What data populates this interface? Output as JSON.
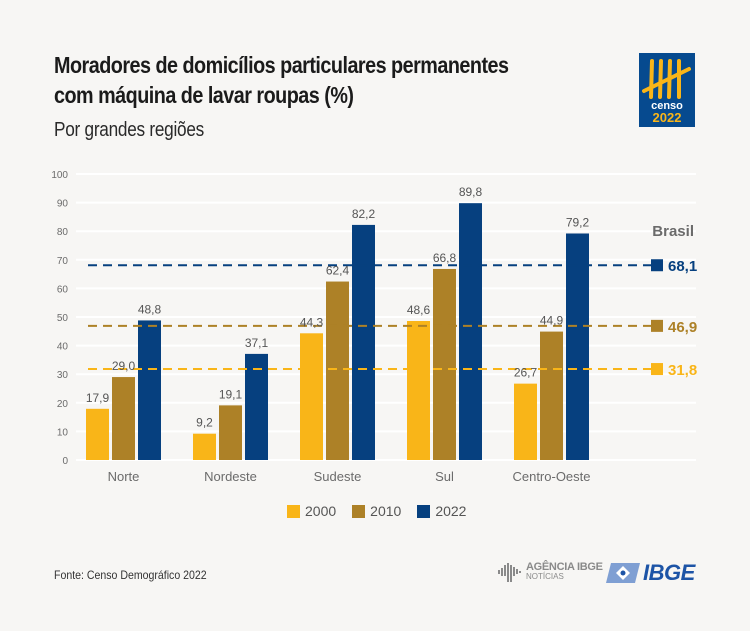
{
  "header": {
    "title_line1": "Moradores de domicílios particulares permanentes",
    "title_line2": "com máquina de lavar roupas (%)",
    "subtitle": "Por grandes regiões"
  },
  "logos": {
    "censo_word": "censo",
    "censo_year": "2022",
    "agencia_top": "AGÊNCIA IBGE",
    "agencia_bottom": "NOTÍCIAS",
    "ibge": "IBGE"
  },
  "footer": {
    "source": "Fonte: Censo Demográfico 2022"
  },
  "colors": {
    "2000": "#f9b518",
    "2010": "#ad8127",
    "2022": "#06407f",
    "grid": "#ffffff",
    "axis_text": "#6b6b6b",
    "label_text": "#555555"
  },
  "chart_data": {
    "type": "bar",
    "title": "Moradores de domicílios particulares permanentes com máquina de lavar roupas (%)",
    "subtitle": "Por grandes regiões",
    "xlabel": "",
    "ylabel": "",
    "ylim": [
      0,
      100
    ],
    "yticks": [
      0,
      10,
      20,
      30,
      40,
      50,
      60,
      70,
      80,
      90,
      100
    ],
    "grid": true,
    "categories": [
      "Norte",
      "Nordeste",
      "Sudeste",
      "Sul",
      "Centro-Oeste"
    ],
    "series": [
      {
        "name": "2000",
        "values": [
          17.9,
          9.2,
          44.3,
          48.6,
          26.7
        ],
        "labels": [
          "17,9",
          "9,2",
          "44,3",
          "48,6",
          "26,7"
        ]
      },
      {
        "name": "2010",
        "values": [
          29.0,
          19.1,
          62.4,
          66.8,
          44.9
        ],
        "labels": [
          "29,0",
          "19,1",
          "62,4",
          "66,8",
          "44,9"
        ]
      },
      {
        "name": "2022",
        "values": [
          48.8,
          37.1,
          82.2,
          89.8,
          79.2
        ],
        "labels": [
          "48,8",
          "37,1",
          "82,2",
          "89,8",
          "79,2"
        ]
      }
    ],
    "reference_lines": {
      "title": "Brasil",
      "lines": [
        {
          "series": "2022",
          "value": 68.1,
          "label": "68,1"
        },
        {
          "series": "2010",
          "value": 46.9,
          "label": "46,9"
        },
        {
          "series": "2000",
          "value": 31.8,
          "label": "31,8"
        }
      ]
    },
    "legend": {
      "position": "bottom",
      "entries": [
        "2000",
        "2010",
        "2022"
      ]
    }
  }
}
